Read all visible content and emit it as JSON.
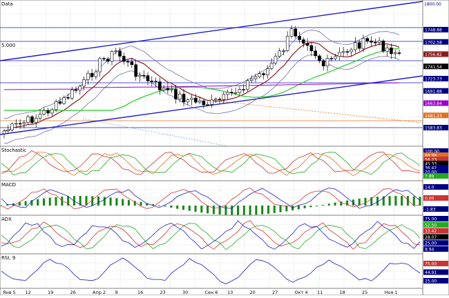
{
  "colors": {
    "candle_up": "#ffffff",
    "candle_down": "#000000",
    "trend_line": "#1a1acc",
    "h_line": "#1a1acc",
    "bollinger": "#5a5aa0",
    "ma_short": "#8b1a1a",
    "ma_long": "#22cc22",
    "purple_ma": "#9900cc",
    "orange_line": "#e07020",
    "teal_line": "#7ab0c8",
    "scale_bg": "#000080",
    "grid": "#b8b8b8"
  },
  "panels": {
    "price": {
      "title": "Data",
      "level_label": "5.000"
    },
    "stochastic": {
      "title": "Stochastic"
    },
    "macd": {
      "title": "MACD"
    },
    "adx": {
      "title": "ADX"
    },
    "rsi": {
      "title": "RSI, 9"
    }
  },
  "price_scale": {
    "top_label": "1800.00",
    "labels": [
      {
        "text": "1748.88",
        "color": "#000080"
      },
      {
        "text": "1702.58",
        "color": "#000080"
      },
      {
        "text": "1756.82",
        "color": "#8b1a1a"
      },
      {
        "text": "1741.54",
        "color": "#000000"
      },
      {
        "text": "1723.73",
        "color": "#000080"
      },
      {
        "text": "1691.88",
        "color": "#000080"
      },
      {
        "text": "1663.84",
        "color": "#9900cc"
      },
      {
        "text": "1681.23",
        "color": "#e07020"
      },
      {
        "text": "1583.83",
        "color": "#000080"
      }
    ]
  },
  "stochastic_scale": {
    "labels": [
      {
        "text": "100.00",
        "color": "#000080"
      },
      {
        "text": "69.98",
        "color": "#e07020"
      },
      {
        "text": "56.23",
        "color": "#cc3333"
      },
      {
        "text": "45.33",
        "color": "#000000"
      },
      {
        "text": "36.42",
        "color": "#000080"
      },
      {
        "text": "20.00",
        "color": "#000080"
      },
      {
        "text": "7.89",
        "color": "#22aa22"
      }
    ]
  },
  "macd_scale": {
    "labels": [
      {
        "text": "14.0",
        "color": "#000080"
      },
      {
        "text": "0.00",
        "color": "#cc3333"
      },
      {
        "text": "-1.83",
        "color": "#000080"
      }
    ]
  },
  "adx_scale": {
    "labels": [
      {
        "text": "75.00",
        "color": "#000080"
      },
      {
        "text": "52.50",
        "color": "#22aa22"
      },
      {
        "text": "33.42",
        "color": "#cc3333"
      },
      {
        "text": "28.07",
        "color": "#000000"
      },
      {
        "text": "25.00",
        "color": "#000080"
      },
      {
        "text": "8.94",
        "color": "#000080"
      }
    ]
  },
  "rsi_scale": {
    "labels": [
      {
        "text": "75.00",
        "color": "#cc3333"
      },
      {
        "text": "44.91",
        "color": "#000080"
      },
      {
        "text": "25.00",
        "color": "#000080"
      }
    ]
  },
  "x_axis": {
    "labels": [
      "Янв 5",
      "12",
      "19",
      "26",
      "Апр 2",
      "9",
      "16",
      "23",
      "30",
      "Сен 6",
      "13",
      "20",
      "27",
      "Окт 4",
      "11",
      "18",
      "25",
      "Ноя 1"
    ]
  }
}
